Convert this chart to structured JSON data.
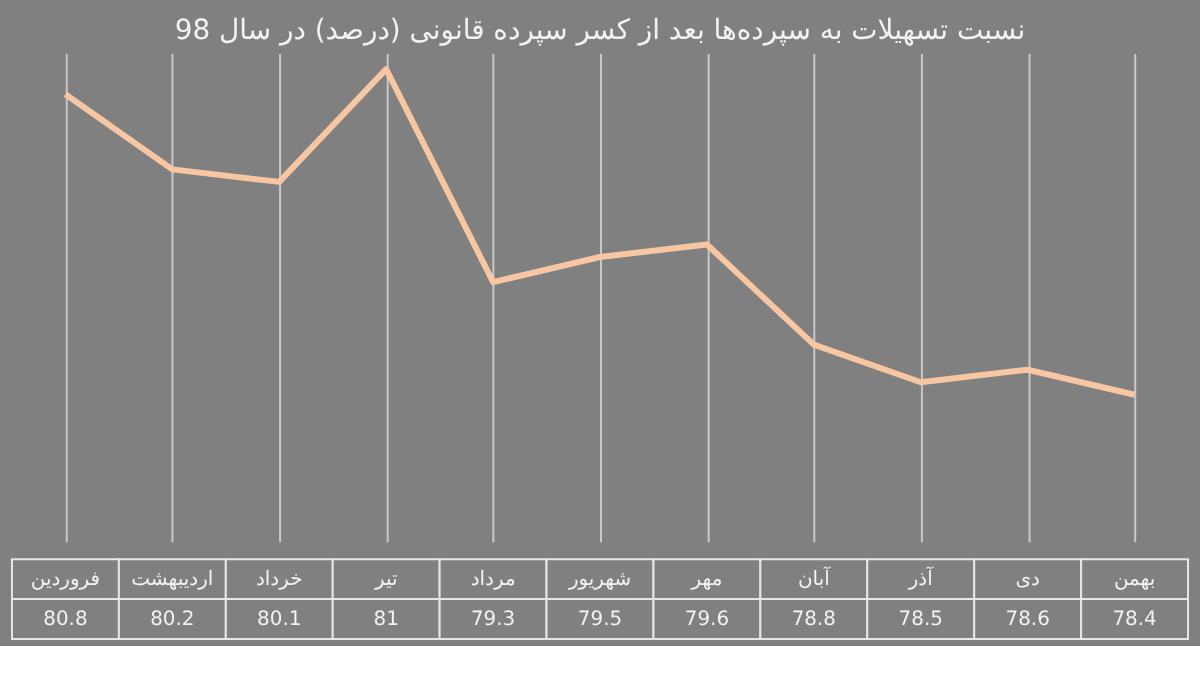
{
  "chart_data": {
    "type": "line",
    "title": "نسبت تسهیلات به سپرده‌ها بعد از کسر سپرده قانونی (درصد) در سال 98",
    "categories": [
      "فروردین",
      "اردیبهشت",
      "خرداد",
      "تیر",
      "مرداد",
      "شهریور",
      "مهر",
      "آبان",
      "آذر",
      "دی",
      "بهمن"
    ],
    "series": [
      {
        "color": "#f7c6a3",
        "values": [
          80.8,
          80.2,
          80.1,
          81,
          79.3,
          79.5,
          79.6,
          78.8,
          78.5,
          78.6,
          78.4
        ]
      }
    ],
    "data_labels": true,
    "grid": "x",
    "marker": "none",
    "line_style": "solid"
  }
}
